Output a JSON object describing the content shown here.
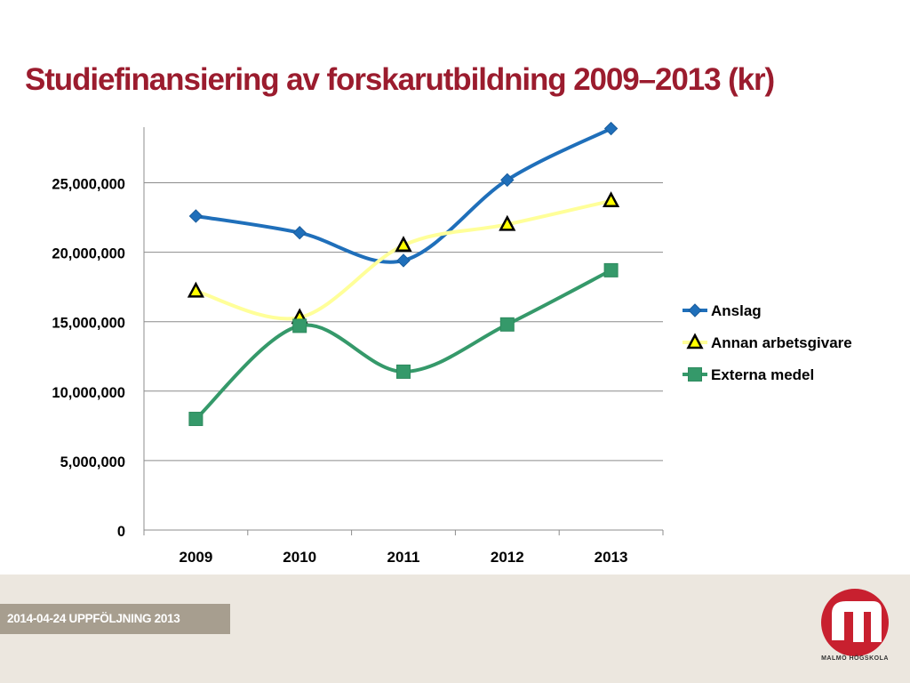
{
  "slide": {
    "title": "Studiefinansiering av forskarutbildning 2009–2013 (kr)",
    "footer_label": "2014-04-24  UPPFÖLJNING 2013",
    "logo_text": "MALMÖ HÖGSKOLA"
  },
  "colors": {
    "title": "#9b1c2e",
    "anslag": "#1f6fba",
    "annan_line": "#ffff99",
    "annan_marker_fill": "#ffff00",
    "externa": "#35996a",
    "footer_band": "#ece7df",
    "footer_label_bg": "#a79e8f",
    "logo": "#c8202f"
  },
  "chart_data": {
    "type": "line",
    "title": "",
    "xlabel": "",
    "ylabel": "",
    "categories": [
      "2009",
      "2010",
      "2011",
      "2012",
      "2013"
    ],
    "ylim": [
      0,
      29000000
    ],
    "yticks": [
      0,
      5000000,
      10000000,
      15000000,
      20000000,
      25000000
    ],
    "ytick_labels": [
      "0",
      "5,000,000",
      "10,000,000",
      "15,000,000",
      "20,000,000",
      "25,000,000"
    ],
    "grid": true,
    "smooth": true,
    "legend_position": "right",
    "series": [
      {
        "name": "Anslag",
        "marker": "diamond",
        "color": "#1f6fba",
        "values": [
          22600000,
          21400000,
          19400000,
          25200000,
          28900000
        ]
      },
      {
        "name": "Annan arbetsgivare",
        "marker": "triangle",
        "color": "#ffff99",
        "values": [
          17200000,
          15300000,
          20500000,
          22000000,
          23700000
        ]
      },
      {
        "name": "Externa medel",
        "marker": "square",
        "color": "#35996a",
        "values": [
          8000000,
          14700000,
          11400000,
          14800000,
          18700000
        ]
      }
    ]
  }
}
